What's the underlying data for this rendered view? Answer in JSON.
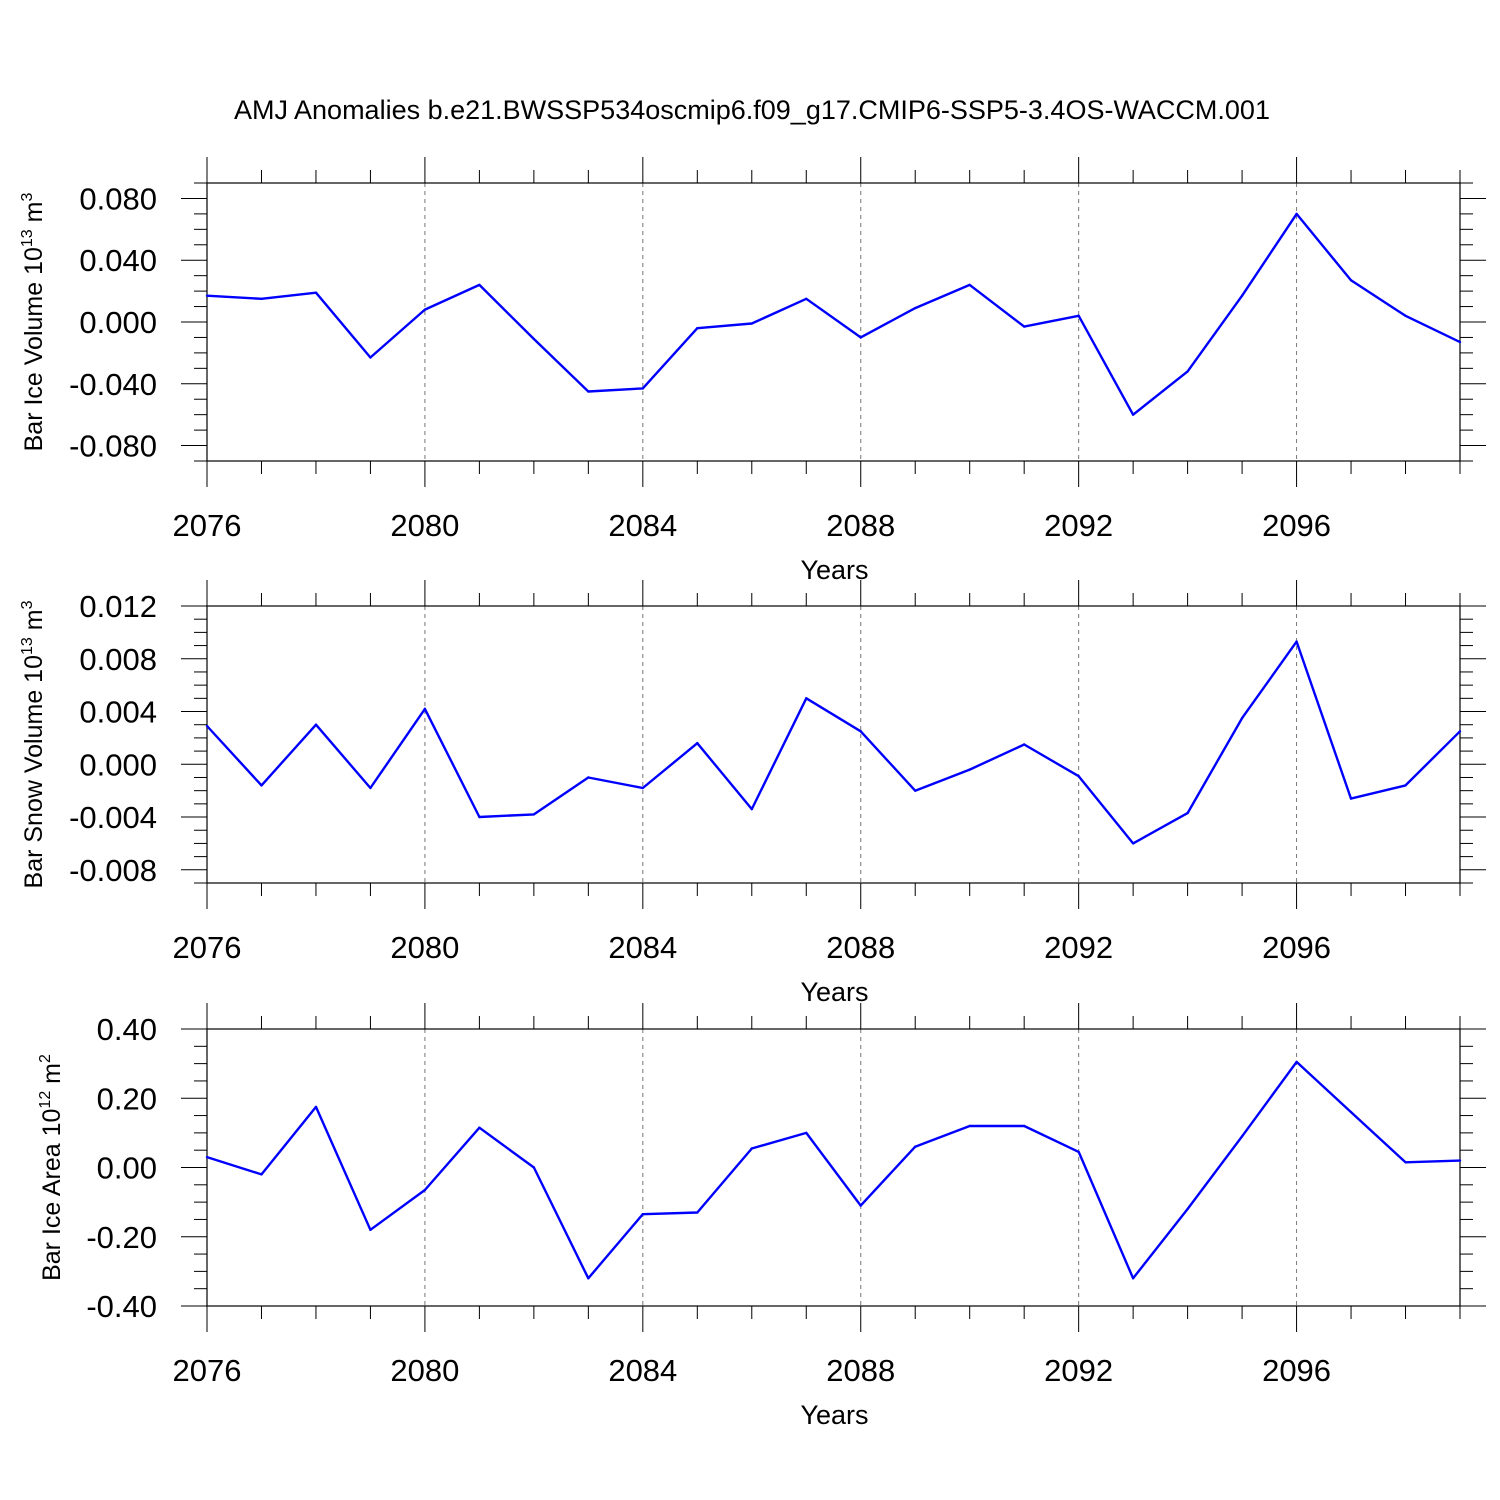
{
  "title": "AMJ Anomalies b.e21.BWSSP534oscmip6.f09_g17.CMIP6-SSP5-3.4OS-WACCM.001",
  "colors": {
    "series": "#0000ff",
    "axis": "#000000",
    "grid": "#777777"
  },
  "chart_data": [
    {
      "type": "line",
      "ylabel": "Bar Ice Volume 10",
      "ylabel_exp": "13",
      "ylabel_unit": " m",
      "ylabel_unit_exp": "3",
      "xlabel": "Years",
      "xlim": [
        2076,
        2099
      ],
      "ylim": [
        -0.09,
        0.09
      ],
      "x_ticks": [
        2076,
        2080,
        2084,
        2088,
        2092,
        2096
      ],
      "x_tick_labels": [
        "2076",
        "2080",
        "2084",
        "2088",
        "2092",
        "2096"
      ],
      "y_ticks": [
        -0.08,
        -0.04,
        0.0,
        0.04,
        0.08
      ],
      "y_tick_labels": [
        "-0.080",
        "-0.040",
        "0.000",
        "0.040",
        "0.080"
      ],
      "x_minor_step": 1,
      "y_minor_step": 0.01,
      "grid": "dashed vertical at major x ticks",
      "x": [
        2076,
        2077,
        2078,
        2079,
        2080,
        2081,
        2082,
        2083,
        2084,
        2085,
        2086,
        2087,
        2088,
        2089,
        2090,
        2091,
        2092,
        2093,
        2094,
        2095,
        2096,
        2097,
        2098,
        2099
      ],
      "values": [
        0.017,
        0.015,
        0.019,
        -0.023,
        0.008,
        0.024,
        -0.011,
        -0.045,
        -0.043,
        -0.004,
        -0.001,
        0.015,
        -0.01,
        0.009,
        0.024,
        -0.003,
        0.004,
        -0.06,
        -0.032,
        0.017,
        0.07,
        0.027,
        0.004,
        -0.013
      ]
    },
    {
      "type": "line",
      "ylabel": "Bar Snow Volume 10",
      "ylabel_exp": "13",
      "ylabel_unit": " m",
      "ylabel_unit_exp": "3",
      "xlabel": "Years",
      "xlim": [
        2076,
        2099
      ],
      "ylim": [
        -0.009,
        0.012
      ],
      "x_ticks": [
        2076,
        2080,
        2084,
        2088,
        2092,
        2096
      ],
      "x_tick_labels": [
        "2076",
        "2080",
        "2084",
        "2088",
        "2092",
        "2096"
      ],
      "y_ticks": [
        -0.008,
        -0.004,
        0.0,
        0.004,
        0.008,
        0.012
      ],
      "y_tick_labels": [
        "-0.008",
        "-0.004",
        "0.000",
        "0.004",
        "0.008",
        "0.012"
      ],
      "x_minor_step": 1,
      "y_minor_step": 0.001,
      "grid": "dashed vertical at major x ticks",
      "x": [
        2076,
        2077,
        2078,
        2079,
        2080,
        2081,
        2082,
        2083,
        2084,
        2085,
        2086,
        2087,
        2088,
        2089,
        2090,
        2091,
        2092,
        2093,
        2094,
        2095,
        2096,
        2097,
        2098,
        2099
      ],
      "values": [
        0.0029,
        -0.0016,
        0.003,
        -0.0018,
        0.0042,
        -0.004,
        -0.0038,
        -0.001,
        -0.0018,
        0.0016,
        -0.0034,
        0.005,
        0.0025,
        -0.002,
        -0.0004,
        0.0015,
        -0.0009,
        -0.006,
        -0.0037,
        0.0035,
        0.0093,
        -0.0026,
        -0.0016,
        0.0025
      ]
    },
    {
      "type": "line",
      "ylabel": "Bar Ice Area 10",
      "ylabel_exp": "12",
      "ylabel_unit": " m",
      "ylabel_unit_exp": "2",
      "xlabel": "Years",
      "xlim": [
        2076,
        2099
      ],
      "ylim": [
        -0.4,
        0.4
      ],
      "x_ticks": [
        2076,
        2080,
        2084,
        2088,
        2092,
        2096
      ],
      "x_tick_labels": [
        "2076",
        "2080",
        "2084",
        "2088",
        "2092",
        "2096"
      ],
      "y_ticks": [
        -0.4,
        -0.2,
        0.0,
        0.2,
        0.4
      ],
      "y_tick_labels": [
        "-0.40",
        "-0.20",
        "0.00",
        "0.20",
        "0.40"
      ],
      "x_minor_step": 1,
      "y_minor_step": 0.05,
      "grid": "dashed vertical at major x ticks",
      "x": [
        2076,
        2077,
        2078,
        2079,
        2080,
        2081,
        2082,
        2083,
        2084,
        2085,
        2086,
        2087,
        2088,
        2089,
        2090,
        2091,
        2092,
        2093,
        2094,
        2095,
        2096,
        2097,
        2098,
        2099
      ],
      "values": [
        0.03,
        -0.02,
        0.175,
        -0.18,
        -0.065,
        0.115,
        0.0,
        -0.32,
        -0.135,
        -0.13,
        0.055,
        0.1,
        -0.11,
        0.06,
        0.12,
        0.12,
        0.045,
        -0.32,
        -0.12,
        0.09,
        0.305,
        0.16,
        0.015,
        0.02
      ]
    }
  ]
}
